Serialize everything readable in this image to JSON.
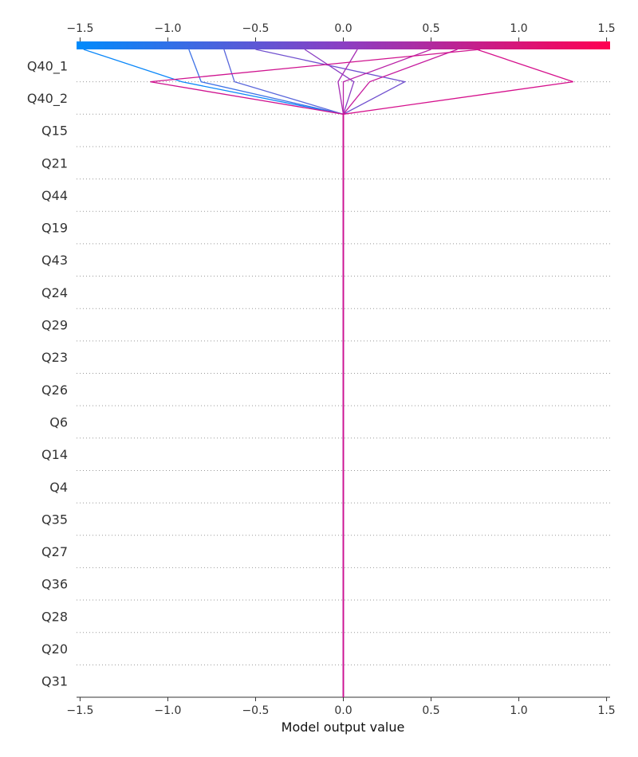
{
  "chart_data": {
    "type": "line",
    "xlabel": "Model output value",
    "xlim": [
      -1.52,
      1.52
    ],
    "xticks": [
      -1.5,
      -1.0,
      -0.5,
      0.0,
      0.5,
      1.0,
      1.5
    ],
    "xtick_labels": [
      "−1.5",
      "−1.0",
      "−0.5",
      "0.0",
      "0.5",
      "1.0",
      "1.5"
    ],
    "base_value": 0.0,
    "features": [
      "Q40_1",
      "Q40_2",
      "Q15",
      "Q21",
      "Q44",
      "Q19",
      "Q43",
      "Q24",
      "Q29",
      "Q23",
      "Q26",
      "Q6",
      "Q14",
      "Q4",
      "Q35",
      "Q27",
      "Q36",
      "Q28",
      "Q20",
      "Q31"
    ],
    "colorbar": {
      "low_color": "#008bfb",
      "high_color": "#ff0052",
      "range": [
        -1.5,
        1.5
      ]
    },
    "series": [
      {
        "color": "#0a87f9",
        "values": {
          "Q40_2": -0.92,
          "Q40_1": -1.48
        }
      },
      {
        "color": "#3f73e6",
        "values": {
          "Q40_2": -0.81,
          "Q40_1": -0.88
        }
      },
      {
        "color": "#5966db",
        "values": {
          "Q40_2": -0.62,
          "Q40_1": -0.68
        }
      },
      {
        "color": "#7050cf",
        "values": {
          "Q40_2": 0.35,
          "Q40_1": -0.5
        }
      },
      {
        "color": "#8b3ec3",
        "values": {
          "Q40_2": 0.06,
          "Q40_1": -0.22
        }
      },
      {
        "color": "#a62db4",
        "values": {
          "Q40_2": -0.03,
          "Q40_1": 0.08
        }
      },
      {
        "color": "#b922a7",
        "values": {
          "Q40_2": 0.0,
          "Q40_1": 0.5
        }
      },
      {
        "color": "#c5199d",
        "values": {
          "Q40_2": 0.15,
          "Q40_1": 0.65
        }
      },
      {
        "color": "#cf138f",
        "values": {
          "Q40_2": -1.1,
          "Q40_1": 0.78
        }
      },
      {
        "color": "#d5108c",
        "values": {
          "Q40_2": 1.31,
          "Q40_1": 0.76
        }
      }
    ]
  }
}
